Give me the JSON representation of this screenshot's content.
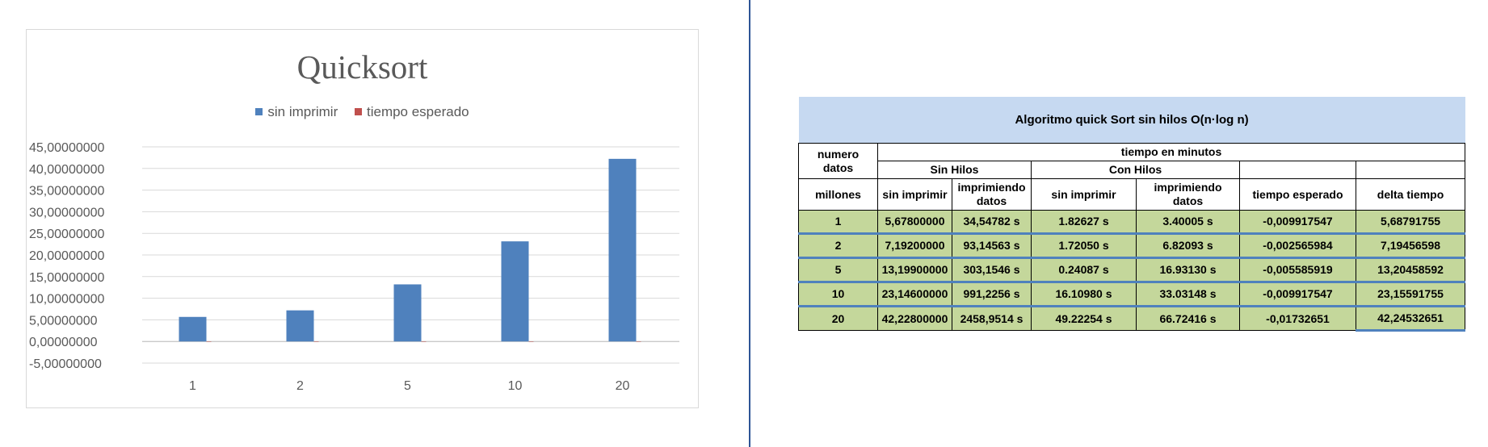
{
  "chart_data": {
    "type": "bar",
    "title": "Quicksort",
    "categories": [
      "1",
      "2",
      "5",
      "10",
      "20"
    ],
    "series": [
      {
        "name": "sin imprimir",
        "color": "#4f81bd",
        "values": [
          5.678,
          7.192,
          13.199,
          23.146,
          42.228
        ]
      },
      {
        "name": "tiempo esperado",
        "color": "#c0504d",
        "values": [
          -0.009917547,
          -0.002565984,
          -0.005585919,
          -0.009917547,
          -0.01732651
        ]
      }
    ],
    "y_tick_labels": [
      "45,00000000",
      "40,00000000",
      "35,00000000",
      "30,00000000",
      "25,00000000",
      "20,00000000",
      "15,00000000",
      "10,00000000",
      "5,00000000",
      "0,00000000",
      "-5,00000000"
    ],
    "ylim": [
      -5,
      45
    ],
    "y_step": 5,
    "grid": true,
    "legend_position": "top-center"
  },
  "table": {
    "caption": "Algoritmo quick Sort sin hilos O(n·log n)",
    "h_numero_datos": "numero datos",
    "h_tiempo": "tiempo en minutos",
    "h_sin_hilos": "Sin Hilos",
    "h_con_hilos": "Con Hilos",
    "h_millones": "millones",
    "cols": [
      "sin imprimir",
      "imprimiendo datos",
      "sin imprimir",
      "imprimiendo datos",
      "tiempo esperado",
      "delta tiempo"
    ],
    "rows": [
      [
        "1",
        "5,67800000",
        "34,54782 s",
        "1.82627 s",
        "3.40005 s",
        "-0,009917547",
        "5,68791755"
      ],
      [
        "2",
        "7,19200000",
        "93,14563 s",
        "1.72050 s",
        "6.82093 s",
        "-0,002565984",
        "7,19456598"
      ],
      [
        "5",
        "13,19900000",
        "303,1546 s",
        "0.24087 s",
        "16.93130 s",
        "-0,005585919",
        "13,20458592"
      ],
      [
        "10",
        "23,14600000",
        "991,2256 s",
        "16.10980 s",
        "33.03148 s",
        "-0,009917547",
        "23,15591755"
      ],
      [
        "20",
        "42,22800000",
        "2458,9514 s",
        "49.22254 s",
        "66.72416 s",
        "-0,01732651",
        "42,24532651"
      ]
    ]
  }
}
